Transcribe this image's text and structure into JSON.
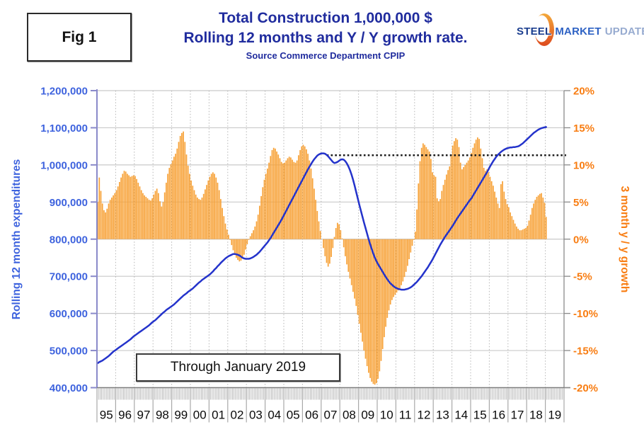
{
  "figure_label": "Fig 1",
  "header": {
    "title_line1": "Total Construction 1,000,000 $",
    "title_line2": "Rolling 12 months and Y / Y growth rate.",
    "subtitle": "Source Commerce Department CPIP"
  },
  "logo": {
    "words": [
      {
        "text": "STEEL",
        "color": "#1b3e8f"
      },
      {
        "text": "MARKET",
        "color": "#2e62c4"
      },
      {
        "text": "UPDATE",
        "color": "#97abd0"
      }
    ],
    "crescent_color_top": "#f4a93b",
    "crescent_color_bottom": "#dd4a1e"
  },
  "annotation_box": {
    "text": "Through January 2019"
  },
  "colors": {
    "title_navy": "#202c9e",
    "left_axis_blue": "#3e63de",
    "right_axis_orange": "#f87d12",
    "bar_orange": "#f7a136",
    "line_blue": "#2433cb",
    "grid_gray": "#c9c9c9",
    "axis_purple": "#8a8aca",
    "dotted_reference": "#1a1a1a"
  },
  "chart_data": {
    "type": "combo",
    "x_frequency": "monthly",
    "x_start": "1995-01",
    "x_end": "2019-01",
    "x_year_labels": [
      "95",
      "96",
      "97",
      "98",
      "99",
      "00",
      "01",
      "02",
      "03",
      "04",
      "05",
      "06",
      "07",
      "08",
      "09",
      "10",
      "11",
      "12",
      "13",
      "14",
      "15",
      "16",
      "17",
      "18",
      "19"
    ],
    "grid": {
      "horizontal": true,
      "vertical_dotted_yearly": true
    },
    "left_axis": {
      "title": "Rolling 12 month expenditures",
      "min": 400000,
      "max": 1200000,
      "tick_step": 100000,
      "tick_labels": [
        "1,200,000",
        "1,100,000",
        "1,000,000",
        "900,000",
        "800,000",
        "700,000",
        "600,000",
        "500,000",
        "400,000"
      ],
      "tick_values_k": [
        1200,
        1100,
        1000,
        900,
        800,
        700,
        600,
        500,
        400
      ]
    },
    "right_axis": {
      "title": "3 month y / y growth",
      "min": -20,
      "max": 20,
      "tick_step": 5,
      "tick_labels": [
        "20%",
        "15%",
        "10%",
        "5%",
        "0%",
        "-5%",
        "-10%",
        "-15%",
        "-20%"
      ],
      "tick_values": [
        20,
        15,
        10,
        5,
        0,
        -5,
        -10,
        -15,
        -20
      ]
    },
    "annotation_line": {
      "type": "dotted-horizontal",
      "value_percent": 11.3,
      "x_start_fraction": 0.492
    },
    "series": [
      {
        "name": "3 month y / y growth",
        "type": "bar",
        "axis": "right",
        "unit": "%",
        "color": "#f7a136",
        "values": [
          5.0,
          8.3,
          6.5,
          4.8,
          3.9,
          3.6,
          4.1,
          4.8,
          5.3,
          5.6,
          5.9,
          6.2,
          6.6,
          7.1,
          7.7,
          8.3,
          8.8,
          9.2,
          9.1,
          8.8,
          8.6,
          8.4,
          8.5,
          8.6,
          8.5,
          8.1,
          7.6,
          7.1,
          6.6,
          6.2,
          5.9,
          5.7,
          5.5,
          5.3,
          5.2,
          5.5,
          6.0,
          6.5,
          6.8,
          6.2,
          5.1,
          4.4,
          5.0,
          6.3,
          7.6,
          8.8,
          9.6,
          10.1,
          10.6,
          11.1,
          11.5,
          12.2,
          13.1,
          13.9,
          14.3,
          14.5,
          13.1,
          11.4,
          9.9,
          8.8,
          7.9,
          7.2,
          6.6,
          6.0,
          5.6,
          5.4,
          5.3,
          5.6,
          6.1,
          6.7,
          7.3,
          7.9,
          8.4,
          8.8,
          9.0,
          8.8,
          8.3,
          7.6,
          6.6,
          5.4,
          4.2,
          3.1,
          2.1,
          1.3,
          0.6,
          -0.1,
          -0.8,
          -1.5,
          -2.1,
          -2.5,
          -2.8,
          -3.0,
          -2.9,
          -2.6,
          -2.1,
          -1.4,
          -0.7,
          -0.1,
          0.4,
          0.8,
          1.2,
          1.7,
          2.4,
          3.3,
          4.5,
          5.8,
          7.0,
          8.0,
          8.8,
          9.5,
          10.3,
          11.2,
          12.0,
          12.3,
          12.2,
          11.8,
          11.4,
          10.9,
          10.4,
          10.2,
          10.3,
          10.6,
          10.9,
          11.1,
          11.0,
          10.7,
          10.4,
          10.3,
          10.6,
          11.3,
          12.0,
          12.5,
          12.7,
          12.5,
          12.1,
          11.5,
          10.6,
          9.5,
          8.2,
          6.8,
          5.3,
          3.8,
          2.4,
          1.1,
          0.0,
          -1.2,
          -2.3,
          -3.2,
          -3.7,
          -3.3,
          -2.4,
          -1.2,
          0.3,
          1.5,
          2.2,
          2.0,
          1.2,
          0.1,
          -1.1,
          -2.3,
          -3.4,
          -4.4,
          -5.3,
          -6.2,
          -7.1,
          -8.0,
          -9.0,
          -10.2,
          -11.4,
          -12.6,
          -13.8,
          -15.0,
          -16.1,
          -17.1,
          -18.0,
          -18.7,
          -19.2,
          -19.5,
          -19.6,
          -19.4,
          -18.8,
          -17.8,
          -16.4,
          -14.8,
          -13.2,
          -11.8,
          -10.6,
          -9.6,
          -8.8,
          -8.2,
          -7.8,
          -7.5,
          -7.2,
          -6.9,
          -6.6,
          -6.2,
          -5.7,
          -5.1,
          -4.4,
          -3.6,
          -2.7,
          -1.8,
          -0.9,
          -0.1,
          1.0,
          4.0,
          7.5,
          10.5,
          12.3,
          12.9,
          12.7,
          12.4,
          12.1,
          11.8,
          10.8,
          9.0,
          8.6,
          8.4,
          5.5,
          5.1,
          5.4,
          6.5,
          7.3,
          8.0,
          8.7,
          9.3,
          9.8,
          11.2,
          12.6,
          13.2,
          13.6,
          13.4,
          12.4,
          10.3,
          9.4,
          9.7,
          10.0,
          10.3,
          10.6,
          11.0,
          11.6,
          12.3,
          12.9,
          13.4,
          13.7,
          13.5,
          12.2,
          10.9,
          9.6,
          9.2,
          9.4,
          9.0,
          8.4,
          7.8,
          7.2,
          6.4,
          5.6,
          4.8,
          4.2,
          7.4,
          7.8,
          6.4,
          5.4,
          4.7,
          4.3,
          3.6,
          3.1,
          2.6,
          2.1,
          1.7,
          1.4,
          1.2,
          1.2,
          1.3,
          1.4,
          1.5,
          1.8,
          2.5,
          3.3,
          4.2,
          4.8,
          5.3,
          5.7,
          5.9,
          6.1,
          6.2,
          5.6,
          4.9,
          3.0
        ]
      },
      {
        "name": "Rolling 12 month expenditures",
        "type": "line",
        "axis": "left",
        "unit": "thousands",
        "color": "#2433cb",
        "values_thousands": [
          466,
          469,
          471,
          473,
          476,
          479,
          482,
          485,
          489,
          493,
          497,
          500,
          503,
          506,
          509,
          512,
          515,
          518,
          521,
          524,
          527,
          530,
          534,
          538,
          541,
          544,
          547,
          550,
          553,
          556,
          559,
          562,
          565,
          568,
          572,
          576,
          579,
          582,
          586,
          590,
          594,
          598,
          602,
          605,
          609,
          612,
          615,
          618,
          621,
          624,
          628,
          632,
          636,
          640,
          644,
          648,
          651,
          654,
          658,
          661,
          664,
          667,
          671,
          675,
          679,
          683,
          686,
          690,
          693,
          696,
          699,
          702,
          705,
          709,
          713,
          718,
          722,
          727,
          731,
          736,
          740,
          744,
          748,
          751,
          754,
          756,
          758,
          760,
          760,
          759,
          758,
          756,
          753,
          750,
          748,
          747,
          747,
          747,
          748,
          750,
          752,
          755,
          758,
          762,
          766,
          771,
          776,
          781,
          786,
          791,
          797,
          803,
          810,
          817,
          824,
          831,
          838,
          845,
          852,
          860,
          868,
          876,
          884,
          892,
          900,
          908,
          916,
          924,
          932,
          940,
          948,
          956,
          964,
          972,
          980,
          988,
          995,
          1002,
          1009,
          1015,
          1020,
          1025,
          1028,
          1030,
          1031,
          1031,
          1030,
          1027,
          1023,
          1018,
          1013,
          1008,
          1005,
          1006,
          1008,
          1011,
          1014,
          1015,
          1014,
          1010,
          1004,
          996,
          986,
          974,
          960,
          944,
          927,
          910,
          893,
          877,
          861,
          845,
          830,
          815,
          800,
          786,
          773,
          761,
          750,
          741,
          733,
          726,
          719,
          712,
          705,
          698,
          692,
          686,
          681,
          677,
          673,
          670,
          668,
          666,
          665,
          664,
          664,
          664,
          665,
          666,
          668,
          670,
          673,
          677,
          681,
          685,
          690,
          695,
          700,
          706,
          712,
          718,
          724,
          731,
          738,
          745,
          753,
          761,
          769,
          777,
          785,
          792,
          799,
          806,
          812,
          818,
          824,
          830,
          836,
          843,
          850,
          857,
          863,
          869,
          875,
          881,
          887,
          893,
          899,
          905,
          910,
          917,
          924,
          931,
          938,
          945,
          952,
          959,
          966,
          973,
          980,
          988,
          996,
          1003,
          1010,
          1016,
          1022,
          1027,
          1031,
          1035,
          1038,
          1041,
          1043,
          1045,
          1046,
          1047,
          1047,
          1048,
          1048,
          1049,
          1050,
          1052,
          1055,
          1058,
          1062,
          1066,
          1070,
          1074,
          1078,
          1082,
          1086,
          1089,
          1092,
          1095,
          1097,
          1099,
          1100,
          1101,
          1102
        ]
      }
    ]
  }
}
